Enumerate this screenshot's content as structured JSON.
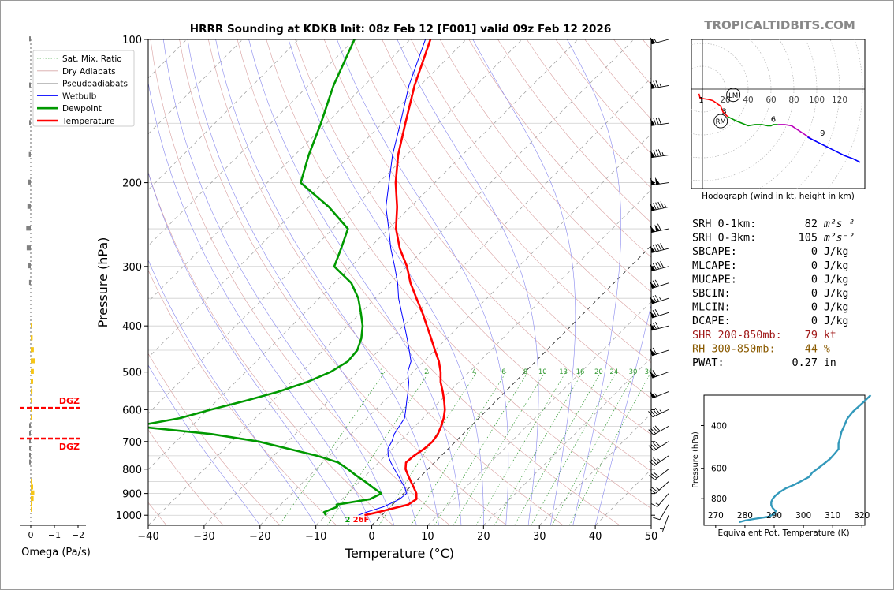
{
  "title": "HRRR Sounding at KDKB Init: 08z Feb 12 [F001] valid 09z Feb 12 2026",
  "brand": "TROPICALTIDBITS.COM",
  "colors": {
    "temperature": "#ff0000",
    "dewpoint": "#009900",
    "wetbulb": "#0000ff",
    "dgz": "#ff0000",
    "omega_pos": "#f5c518",
    "omega_neg": "#808080",
    "shr": "#a01818",
    "rh": "#8a5a00",
    "hodo_0_3": "#ff0000",
    "hodo_3_6": "#009900",
    "hodo_6_9": "#bb00bb",
    "hodo_9_12": "#0000ff",
    "theta_e": "#3399bb"
  },
  "legend": [
    {
      "label": "Sat. Mix. Ratio",
      "style": "dotted",
      "color": "#44aa44"
    },
    {
      "label": "Dry Adiabats",
      "style": "solid",
      "color": "#d8a8a8"
    },
    {
      "label": "Pseudoadiabats",
      "style": "solid",
      "color": "#aaaaaa"
    },
    {
      "label": "Wetbulb",
      "style": "solid",
      "color": "#0000ff"
    },
    {
      "label": "Dewpoint",
      "style": "solid",
      "color": "#009900"
    },
    {
      "label": "Temperature",
      "style": "solid",
      "color": "#ff0000"
    }
  ],
  "chart_data": [
    {
      "type": "line",
      "title": "HRRR Sounding at KDKB Init: 08z Feb 12 [F001] valid 09z Feb 12 2026",
      "xlabel": "Temperature (°C)",
      "ylabel": "Pressure (hPa)",
      "xlim": [
        -40,
        50
      ],
      "ylim": [
        1050,
        100
      ],
      "yscale": "log",
      "grid": true,
      "legend_position": "top-left",
      "x_ticks": [
        "−40",
        "−30",
        "−20",
        "−10",
        "0",
        "10",
        "20",
        "30",
        "40",
        "50"
      ],
      "y_ticks": [
        "100",
        "200",
        "300",
        "400",
        "500",
        "600",
        "700",
        "800",
        "900",
        "1000"
      ],
      "mixing_ratio_labels": [
        "1",
        "2",
        "4",
        "6",
        "8",
        "10",
        "13",
        "16",
        "20",
        "24",
        "30",
        "36"
      ],
      "surface_label": "2",
      "surface_temp_label": "26F",
      "series": [
        {
          "name": "Temperature",
          "pressure": [
            1000,
            985,
            950,
            925,
            900,
            875,
            850,
            825,
            800,
            775,
            750,
            725,
            700,
            675,
            650,
            625,
            600,
            575,
            550,
            525,
            500,
            475,
            450,
            425,
            400,
            375,
            350,
            325,
            300,
            275,
            250,
            225,
            200,
            175,
            150,
            125,
            100
          ],
          "temp": [
            -3.1,
            -1.2,
            2.8,
            3.3,
            2.3,
            0.8,
            -0.8,
            -2.4,
            -4.0,
            -5.1,
            -4.9,
            -4.3,
            -4.1,
            -4.5,
            -5.3,
            -6.3,
            -7.6,
            -9.3,
            -11.2,
            -13.3,
            -15.1,
            -17.3,
            -20.0,
            -22.8,
            -25.8,
            -29.0,
            -32.6,
            -36.4,
            -40.0,
            -44.5,
            -48.7,
            -52.4,
            -57.0,
            -61.5,
            -65.9,
            -71.0,
            -76.4
          ]
        },
        {
          "name": "Dewpoint",
          "pressure": [
            1000,
            985,
            960,
            950,
            925,
            900,
            875,
            850,
            825,
            800,
            775,
            750,
            700,
            675,
            650,
            625,
            600,
            575,
            550,
            525,
            500,
            475,
            450,
            425,
            400,
            375,
            350,
            325,
            300,
            275,
            250,
            225,
            200,
            175,
            150,
            125,
            100
          ],
          "temp": [
            -10.0,
            -10.9,
            -9.5,
            -10.0,
            -5.0,
            -4.0,
            -6.5,
            -9.0,
            -11.7,
            -14.3,
            -17.2,
            -22.2,
            -35.2,
            -45.0,
            -60.0,
            -53.5,
            -49.5,
            -44.9,
            -40.6,
            -37.2,
            -34.8,
            -33.6,
            -33.9,
            -35.3,
            -37.3,
            -40.0,
            -43.0,
            -47.0,
            -53.0,
            -55.0,
            -57.3,
            -64.6,
            -74.0,
            -77.5,
            -81.0,
            -85.5,
            -90.0
          ]
        },
        {
          "name": "Wetbulb",
          "pressure": [
            1000,
            985,
            960,
            925,
            900,
            875,
            850,
            825,
            800,
            775,
            750,
            725,
            700,
            675,
            650,
            625,
            600,
            575,
            550,
            525,
            500,
            475,
            450,
            425,
            400,
            375,
            350,
            325,
            300,
            275,
            250,
            225,
            200,
            175,
            150,
            125,
            100
          ],
          "temp": [
            -4.2,
            -3.3,
            -1.2,
            0.3,
            0.5,
            -0.8,
            -2.5,
            -4.2,
            -6.0,
            -7.8,
            -9.5,
            -10.8,
            -11.4,
            -12.3,
            -12.8,
            -13.3,
            -14.6,
            -16.0,
            -17.4,
            -19.0,
            -21.0,
            -22.3,
            -24.6,
            -27.1,
            -29.8,
            -32.7,
            -35.8,
            -38.7,
            -42.2,
            -46.1,
            -50.0,
            -54.4,
            -58.2,
            -62.5,
            -66.8,
            -72.0,
            -77.3
          ]
        }
      ]
    },
    {
      "type": "bar",
      "xlabel": "Omega (Pa/s)",
      "xlim": [
        0.5,
        -2
      ],
      "x_ticks": [
        "0",
        "−1",
        "−2"
      ],
      "pressure": [
        100,
        125,
        150,
        175,
        200,
        225,
        250,
        275,
        300,
        325,
        400,
        425,
        450,
        475,
        500,
        525,
        550,
        575,
        600,
        625,
        650,
        675,
        700,
        725,
        750,
        775,
        850,
        875,
        900,
        925,
        950,
        975
      ],
      "omega": [
        0.04,
        0.05,
        0.06,
        0.08,
        0.12,
        0.14,
        0.19,
        0.17,
        0.13,
        0.07,
        -0.05,
        -0.08,
        -0.13,
        -0.17,
        -0.13,
        -0.1,
        -0.07,
        -0.05,
        -0.04,
        -0.02,
        0.02,
        0.03,
        0.03,
        0.02,
        0.02,
        0.01,
        -0.05,
        -0.1,
        -0.15,
        -0.12,
        -0.06,
        -0.04
      ],
      "dgz_label": "DGZ",
      "dgz_levels": [
        595,
        690
      ]
    },
    {
      "type": "line",
      "title": "Hodograph (wind in kt, height in km)",
      "ring_labels": [
        "20",
        "40",
        "60",
        "80",
        "100",
        "120"
      ],
      "height_labels": [
        "1",
        "3",
        "6",
        "9"
      ],
      "motion_labels": [
        "LM",
        "RM"
      ],
      "series": [
        {
          "name": "0-3 km",
          "u": [
            -3,
            -2,
            5,
            9,
            12,
            16,
            18,
            20,
            22
          ],
          "v": [
            -4,
            -8,
            -9,
            -10,
            -12,
            -15,
            -20,
            -22,
            -24
          ]
        },
        {
          "name": "3-6 km",
          "u": [
            22,
            30,
            40,
            46,
            52,
            57,
            60,
            62,
            66
          ],
          "v": [
            -24,
            -28,
            -32,
            -31,
            -31,
            -32,
            -32,
            -31,
            -31
          ]
        },
        {
          "name": "6-9 km",
          "u": [
            66,
            72,
            78,
            84,
            90,
            96,
            100
          ],
          "v": [
            -31,
            -31,
            -32,
            -36,
            -40,
            -44,
            -46
          ]
        },
        {
          "name": "9-12 km",
          "u": [
            92,
            100,
            108,
            116,
            124,
            132,
            138
          ],
          "v": [
            -42,
            -46,
            -50,
            -54,
            -58,
            -61,
            -64
          ]
        }
      ]
    },
    {
      "type": "line",
      "xlabel": "Equivalent Pot. Temperature (K)",
      "ylabel": "Pressure (hPa)",
      "xlim": [
        266,
        321
      ],
      "ylim": [
        1030,
        300
      ],
      "x_ticks": [
        "270",
        "280",
        "290",
        "300",
        "310",
        "320"
      ],
      "y_ticks": [
        "400",
        "600",
        "800"
      ],
      "series": [
        {
          "name": "θe",
          "pressure": [
            1000,
            985,
            970,
            950,
            925,
            900,
            875,
            850,
            825,
            800,
            775,
            750,
            725,
            700,
            675,
            650,
            625,
            600,
            575,
            550,
            525,
            500,
            475,
            450,
            425,
            400,
            375,
            350,
            325,
            300
          ],
          "theta_e": [
            278,
            280,
            283,
            288,
            290,
            290.5,
            289.5,
            289,
            289,
            289.5,
            290.5,
            292,
            294,
            297,
            299.5,
            302,
            303,
            305,
            307,
            309,
            310.5,
            312,
            312,
            312.5,
            313,
            314,
            315,
            317,
            320,
            323
          ]
        }
      ]
    }
  ],
  "indices": [
    {
      "label": "SRH 0-1km:",
      "value": "82",
      "unit_html": "m²s⁻²",
      "color": "#000000"
    },
    {
      "label": "SRH 0-3km:",
      "value": "105",
      "unit_html": "m²s⁻²",
      "color": "#000000"
    },
    {
      "label": "SBCAPE:",
      "value": "0",
      "unit_html": "J/kg",
      "color": "#000000"
    },
    {
      "label": "MLCAPE:",
      "value": "0",
      "unit_html": "J/kg",
      "color": "#000000"
    },
    {
      "label": "MUCAPE:",
      "value": "0",
      "unit_html": "J/kg",
      "color": "#000000"
    },
    {
      "label": "SBCIN:",
      "value": "0",
      "unit_html": "J/kg",
      "color": "#000000"
    },
    {
      "label": "MLCIN:",
      "value": "0",
      "unit_html": "J/kg",
      "color": "#000000"
    },
    {
      "label": "DCAPE:",
      "value": "0",
      "unit_html": "J/kg",
      "color": "#000000"
    },
    {
      "label": "SHR 200-850mb:",
      "value": "79",
      "unit_html": "kt",
      "color": "#a01818"
    },
    {
      "label": "RH 300-850mb:",
      "value": "44",
      "unit_html": "%",
      "color": "#8a5a00"
    },
    {
      "label": "PWAT:",
      "value": "0.27",
      "unit_html": "in",
      "color": "#000000"
    }
  ],
  "wind_barbs": [
    {
      "p": 100,
      "spd": 55,
      "dir": 255
    },
    {
      "p": 125,
      "spd": 75,
      "dir": 260
    },
    {
      "p": 150,
      "spd": 80,
      "dir": 262
    },
    {
      "p": 175,
      "spd": 85,
      "dir": 262
    },
    {
      "p": 200,
      "spd": 100,
      "dir": 262
    },
    {
      "p": 225,
      "spd": 95,
      "dir": 258
    },
    {
      "p": 250,
      "spd": 110,
      "dir": 258
    },
    {
      "p": 275,
      "spd": 90,
      "dir": 256
    },
    {
      "p": 300,
      "spd": 90,
      "dir": 255
    },
    {
      "p": 325,
      "spd": 70,
      "dir": 252
    },
    {
      "p": 350,
      "spd": 75,
      "dir": 252
    },
    {
      "p": 375,
      "spd": 70,
      "dir": 252
    },
    {
      "p": 400,
      "spd": 70,
      "dir": 255
    },
    {
      "p": 450,
      "spd": 60,
      "dir": 252
    },
    {
      "p": 500,
      "spd": 60,
      "dir": 250
    },
    {
      "p": 550,
      "spd": 55,
      "dir": 248
    },
    {
      "p": 600,
      "spd": 45,
      "dir": 245
    },
    {
      "p": 650,
      "spd": 40,
      "dir": 240
    },
    {
      "p": 700,
      "spd": 40,
      "dir": 238
    },
    {
      "p": 750,
      "spd": 35,
      "dir": 235
    },
    {
      "p": 800,
      "spd": 30,
      "dir": 232
    },
    {
      "p": 850,
      "spd": 25,
      "dir": 228
    },
    {
      "p": 900,
      "spd": 15,
      "dir": 220
    },
    {
      "p": 950,
      "spd": 10,
      "dir": 210
    },
    {
      "p": 1000,
      "spd": 5,
      "dir": 200
    }
  ]
}
